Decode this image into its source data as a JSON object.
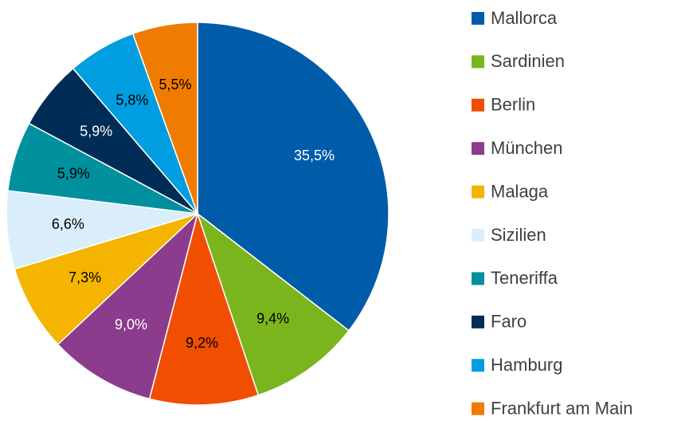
{
  "chart_data": {
    "type": "pie",
    "categories": [
      "Mallorca",
      "Sardinien",
      "Berlin",
      "München",
      "Malaga",
      "Sizilien",
      "Teneriffa",
      "Faro",
      "Hamburg",
      "Frankfurt am Main"
    ],
    "values": [
      35.5,
      9.4,
      9.2,
      9.0,
      7.3,
      6.6,
      5.9,
      5.9,
      5.8,
      5.5
    ],
    "value_labels": [
      "35,5%",
      "9,4%",
      "9,2%",
      "9,0%",
      "7,3%",
      "6,6%",
      "5,9%",
      "5,9%",
      "5,8%",
      "5,5%"
    ],
    "colors": [
      "#005ca9",
      "#7ab51d",
      "#f04e00",
      "#8c3c8c",
      "#f5b400",
      "#d9eefa",
      "#00909e",
      "#002d56",
      "#009ee0",
      "#ef7c00"
    ],
    "legend": "right"
  }
}
